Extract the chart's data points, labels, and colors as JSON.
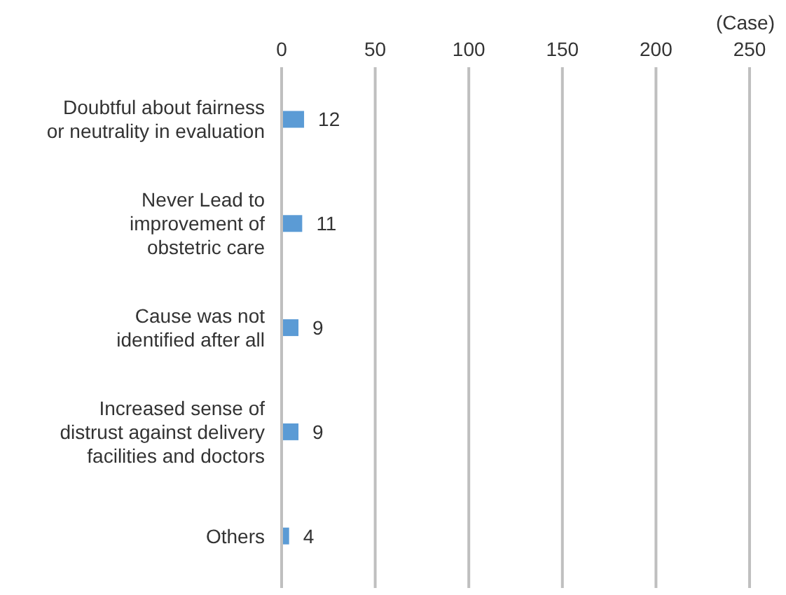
{
  "chart_data": {
    "type": "bar",
    "orientation": "horizontal",
    "xlabel": "(Case)",
    "categories": [
      "Doubtful about fairness\nor neutrality in evaluation",
      "Never Lead to\nimprovement of\nobstetric care",
      "Cause was not\nidentified after all",
      "Increased sense of\ndistrust against delivery\nfacilities and doctors",
      "Others"
    ],
    "values": [
      12,
      11,
      9,
      9,
      4
    ],
    "color": "#5b9bd5",
    "xlim": [
      0,
      250
    ],
    "xticks": [
      0,
      50,
      100,
      150,
      200,
      250
    ],
    "grid": "x",
    "data_labels": true,
    "legend": false
  }
}
